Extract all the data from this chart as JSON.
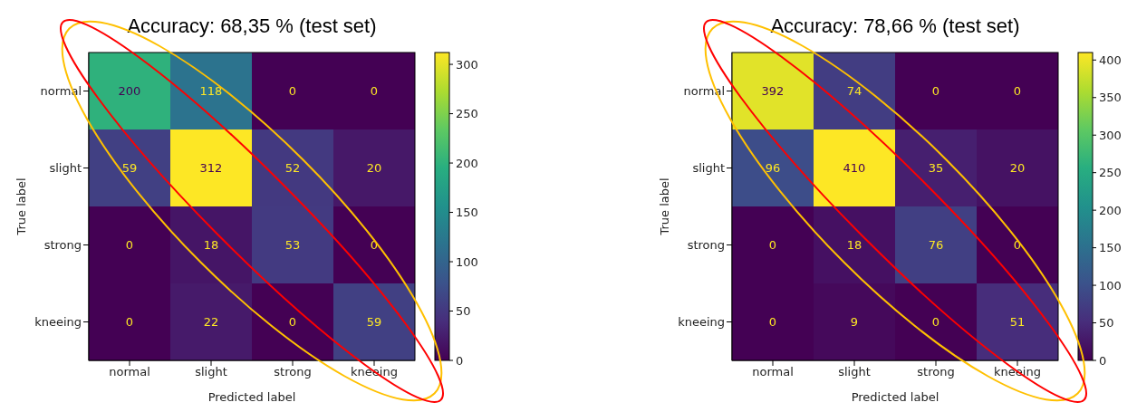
{
  "chart_data": [
    {
      "type": "heatmap",
      "title": "Accuracy: 68,35 % (test set)",
      "xlabel": "Predicted label",
      "ylabel": "True label",
      "categories": [
        "normal",
        "slight",
        "strong",
        "kneeing"
      ],
      "y_categories": [
        "normal",
        "slight",
        "strong",
        "kneeing"
      ],
      "cells": [
        [
          200,
          118,
          0,
          0
        ],
        [
          59,
          312,
          52,
          20
        ],
        [
          0,
          18,
          53,
          0
        ],
        [
          0,
          22,
          0,
          59
        ]
      ],
      "clim": [
        0,
        312
      ],
      "cticks": [
        0,
        50,
        100,
        150,
        200,
        250,
        300
      ],
      "data_labels": true
    },
    {
      "type": "heatmap",
      "title": "Accuracy: 78,66 % (test set)",
      "xlabel": "Predicted label",
      "ylabel": "True label",
      "categories": [
        "normal",
        "slight",
        "strong",
        "kneeing"
      ],
      "y_categories": [
        "normal",
        "slight",
        "strong",
        "kneeing"
      ],
      "cells": [
        [
          392,
          74,
          0,
          0
        ],
        [
          96,
          410,
          35,
          20
        ],
        [
          0,
          18,
          76,
          0
        ],
        [
          0,
          9,
          0,
          51
        ]
      ],
      "clim": [
        0,
        410
      ],
      "cticks": [
        0,
        50,
        100,
        150,
        200,
        250,
        300,
        350,
        400
      ],
      "data_labels": true
    }
  ]
}
